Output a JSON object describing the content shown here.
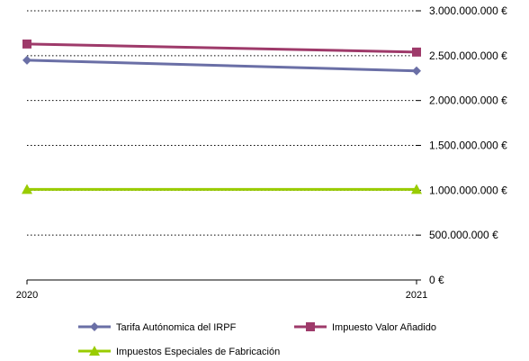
{
  "chart_data": {
    "type": "line",
    "x": [
      "2020",
      "2021"
    ],
    "series": [
      {
        "name": "Tarifa Autónomica del IRPF",
        "values": [
          2450000000,
          2330000000
        ],
        "color": "#6a6fa6",
        "marker": "diamond"
      },
      {
        "name": "Impuesto Valor Añadido",
        "values": [
          2630000000,
          2540000000
        ],
        "color": "#9e3a6a",
        "marker": "square"
      },
      {
        "name": "Impuestos Especiales de Fabricación",
        "values": [
          1010000000,
          1010000000
        ],
        "color": "#99cc00",
        "marker": "triangle"
      }
    ],
    "y_ticks": [
      {
        "value": 0,
        "label": "0 €"
      },
      {
        "value": 500000000,
        "label": "500.000.000 €"
      },
      {
        "value": 1000000000,
        "label": "1.000.000.000 €"
      },
      {
        "value": 1500000000,
        "label": "1.500.000.000 €"
      },
      {
        "value": 2000000000,
        "label": "2.000.000.000 €"
      },
      {
        "value": 2500000000,
        "label": "2.500.000.000 €"
      },
      {
        "value": 3000000000,
        "label": "3.000.000.000 €"
      }
    ],
    "ylim": [
      0,
      3000000000
    ],
    "y_axis_side": "right",
    "grid": "horizontal-dotted",
    "legend_position": "bottom"
  }
}
